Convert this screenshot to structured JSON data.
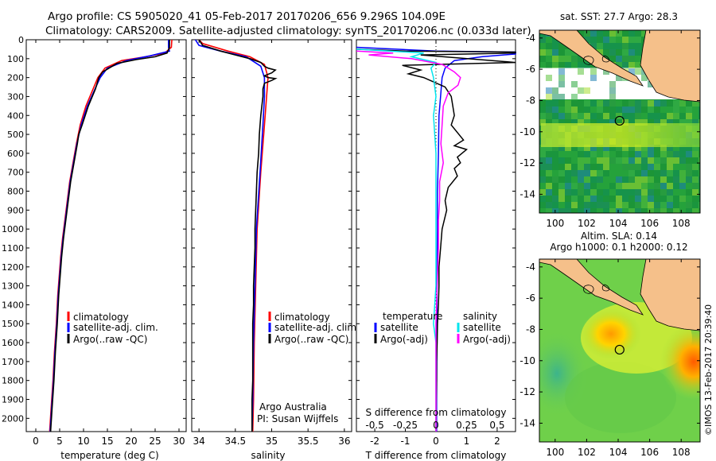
{
  "header": {
    "title_line1": "Argo profile: CS 5905020_41 05-Feb-2017 20170206_656 9.296S 104.09E",
    "title_line2": "Climatology: CARS2009. Satellite-adjusted climatology: synTS_20170206.nc (0.033d later)"
  },
  "colors": {
    "climatology": "#ff0000",
    "satellite": "#0000ff",
    "argo": "#000000",
    "sat_cyan": "#00e5ee",
    "argo_magenta": "#ff00ff",
    "land": "#f5c08a",
    "sst_bg": "#1f9c3a",
    "sla_bg": "#6fd04a"
  },
  "chart_data": [
    {
      "type": "line",
      "id": "temperature",
      "xlabel": "temperature (deg C)",
      "ylabel": "",
      "xlim": [
        -2,
        31.5
      ],
      "ylim": [
        2070,
        0
      ],
      "xticks": [
        0,
        5,
        10,
        15,
        20,
        25,
        30
      ],
      "yticks": [
        0,
        100,
        200,
        300,
        400,
        500,
        600,
        700,
        800,
        900,
        1000,
        1100,
        1200,
        1300,
        1400,
        1500,
        1600,
        1700,
        1800,
        1900,
        2000
      ],
      "legend": [
        "climatology",
        "satellite-adj. clim.",
        "Argo(..raw -QC)"
      ],
      "legend_position": "lower-center",
      "series": [
        {
          "name": "climatology",
          "color": "#ff0000",
          "points": [
            [
              28.5,
              0
            ],
            [
              28.4,
              40
            ],
            [
              27,
              70
            ],
            [
              23,
              90
            ],
            [
              18,
              110
            ],
            [
              14.5,
              150
            ],
            [
              13,
              200
            ],
            [
              12,
              260
            ],
            [
              10.5,
              350
            ],
            [
              9.3,
              450
            ],
            [
              8.5,
              550
            ],
            [
              7.8,
              650
            ],
            [
              7.1,
              750
            ],
            [
              6.6,
              850
            ],
            [
              6.1,
              950
            ],
            [
              5.6,
              1050
            ],
            [
              5.2,
              1150
            ],
            [
              4.9,
              1250
            ],
            [
              4.6,
              1350
            ],
            [
              4.3,
              1500
            ],
            [
              3.9,
              1650
            ],
            [
              3.6,
              1800
            ],
            [
              3.2,
              1950
            ],
            [
              2.9,
              2070
            ]
          ]
        },
        {
          "name": "satellite-adj. clim.",
          "color": "#0000ff",
          "points": [
            [
              27.8,
              0
            ],
            [
              27.8,
              40
            ],
            [
              28,
              60
            ],
            [
              24,
              85
            ],
            [
              19,
              110
            ],
            [
              15,
              150
            ],
            [
              13.5,
              200
            ],
            [
              12.4,
              260
            ],
            [
              10.8,
              350
            ],
            [
              9.5,
              450
            ],
            [
              8.6,
              550
            ],
            [
              7.9,
              650
            ],
            [
              7.2,
              750
            ],
            [
              6.7,
              850
            ],
            [
              6.2,
              950
            ],
            [
              5.7,
              1050
            ],
            [
              5.3,
              1150
            ],
            [
              5,
              1250
            ],
            [
              4.7,
              1350
            ],
            [
              4.4,
              1500
            ],
            [
              4,
              1650
            ],
            [
              3.7,
              1800
            ],
            [
              3.3,
              1950
            ],
            [
              3,
              2070
            ]
          ]
        },
        {
          "name": "Argo(..raw -QC)",
          "color": "#000000",
          "points": [
            [
              28,
              0
            ],
            [
              28,
              40
            ],
            [
              27.5,
              70
            ],
            [
              25,
              90
            ],
            [
              21,
              105
            ],
            [
              17,
              125
            ],
            [
              14,
              170
            ],
            [
              13.2,
              200
            ],
            [
              12.5,
              260
            ],
            [
              11,
              350
            ],
            [
              9.7,
              450
            ],
            [
              9,
              500
            ],
            [
              8.7,
              550
            ],
            [
              8,
              650
            ],
            [
              7.3,
              750
            ],
            [
              6.8,
              850
            ],
            [
              6.3,
              950
            ],
            [
              5.8,
              1050
            ],
            [
              5.4,
              1150
            ],
            [
              5.1,
              1250
            ],
            [
              4.8,
              1350
            ],
            [
              4.5,
              1500
            ],
            [
              4.1,
              1650
            ],
            [
              3.8,
              1800
            ],
            [
              3.4,
              1950
            ],
            [
              3.1,
              2070
            ]
          ]
        }
      ]
    },
    {
      "type": "line",
      "id": "salinity",
      "xlabel": "salinity",
      "ylabel": "",
      "xlim": [
        33.9,
        36.1
      ],
      "ylim": [
        2070,
        0
      ],
      "xticks": [
        34,
        34.5,
        35,
        35.5,
        36
      ],
      "legend": [
        "climatology",
        "satellite-adj. clim.",
        "Argo(..raw -QC)"
      ],
      "legend_position": "lower-right",
      "annotations": [
        "Argo Australia",
        "PI: Susan Wijffels"
      ],
      "series": [
        {
          "name": "climatology",
          "color": "#ff0000",
          "points": [
            [
              34.0,
              0
            ],
            [
              34.05,
              20
            ],
            [
              34.4,
              60
            ],
            [
              34.7,
              90
            ],
            [
              34.9,
              130
            ],
            [
              34.95,
              200
            ],
            [
              34.93,
              300
            ],
            [
              34.9,
              450
            ],
            [
              34.85,
              700
            ],
            [
              34.8,
              1000
            ],
            [
              34.78,
              1300
            ],
            [
              34.76,
              1600
            ],
            [
              34.75,
              1900
            ],
            [
              34.74,
              2070
            ]
          ]
        },
        {
          "name": "satellite-adj. clim.",
          "color": "#0000ff",
          "points": [
            [
              33.95,
              0
            ],
            [
              34.0,
              30
            ],
            [
              34.3,
              60
            ],
            [
              34.65,
              90
            ],
            [
              34.85,
              140
            ],
            [
              34.9,
              200
            ],
            [
              34.9,
              300
            ],
            [
              34.88,
              450
            ],
            [
              34.84,
              700
            ],
            [
              34.79,
              1000
            ],
            [
              34.77,
              1300
            ],
            [
              34.75,
              1600
            ],
            [
              34.74,
              1900
            ],
            [
              34.73,
              2070
            ]
          ]
        },
        {
          "name": "Argo(..raw -QC)",
          "color": "#000000",
          "points": [
            [
              34.0,
              0
            ],
            [
              34.05,
              30
            ],
            [
              34.3,
              60
            ],
            [
              34.5,
              80
            ],
            [
              34.7,
              100
            ],
            [
              34.85,
              120
            ],
            [
              34.9,
              140
            ],
            [
              34.95,
              150
            ],
            [
              35.05,
              160
            ],
            [
              35.0,
              175
            ],
            [
              34.9,
              190
            ],
            [
              34.95,
              200
            ],
            [
              35.05,
              205
            ],
            [
              35.0,
              215
            ],
            [
              34.9,
              230
            ],
            [
              34.88,
              260
            ],
            [
              34.88,
              300
            ],
            [
              34.85,
              400
            ],
            [
              34.83,
              500
            ],
            [
              34.82,
              600
            ],
            [
              34.8,
              700
            ],
            [
              34.79,
              800
            ],
            [
              34.78,
              900
            ],
            [
              34.77,
              1000
            ],
            [
              34.77,
              1100
            ],
            [
              34.76,
              1200
            ],
            [
              34.75,
              1300
            ],
            [
              34.75,
              1400
            ],
            [
              34.74,
              1500
            ],
            [
              34.74,
              1600
            ],
            [
              34.74,
              1700
            ],
            [
              34.74,
              1800
            ],
            [
              34.73,
              1900
            ],
            [
              34.73,
              2070
            ]
          ]
        }
      ]
    },
    {
      "type": "line",
      "id": "difference",
      "xlabel": "T difference from climatology",
      "xlabel_top": "S difference from climatology",
      "xlim": [
        -2.6,
        2.6
      ],
      "xlim_s": [
        -0.65,
        0.65
      ],
      "ylim": [
        2070,
        0
      ],
      "xticks": [
        -2,
        -1,
        0,
        1,
        2
      ],
      "xticks_s": [
        "-0.5",
        "-0.25",
        "0",
        "0.25",
        "0.5"
      ],
      "legend_temperature_title": "temperature",
      "legend_salinity_title": "salinity",
      "legend_t": [
        "satellite",
        "Argo(-adj)"
      ],
      "legend_s": [
        "satellite",
        "Argo(-adj)"
      ],
      "series": [
        {
          "name": "T satellite",
          "color": "#0000ff",
          "points": [
            [
              -2.6,
              40
            ],
            [
              0,
              60
            ],
            [
              2.6,
              65
            ],
            [
              2.6,
              75
            ],
            [
              1.5,
              90
            ],
            [
              0.6,
              110
            ],
            [
              0.3,
              150
            ],
            [
              0.2,
              200
            ],
            [
              0.15,
              300
            ],
            [
              0.1,
              400
            ],
            [
              0.08,
              600
            ],
            [
              0.05,
              800
            ],
            [
              0.05,
              1000
            ],
            [
              0.03,
              1300
            ],
            [
              0.03,
              1600
            ],
            [
              0.02,
              1900
            ],
            [
              0.02,
              2070
            ]
          ]
        },
        {
          "name": "T Argo(-adj)",
          "color": "#000000",
          "points": [
            [
              -2.6,
              50
            ],
            [
              -1,
              60
            ],
            [
              2.6,
              65
            ],
            [
              2.6,
              70
            ],
            [
              -0.5,
              80
            ],
            [
              2.6,
              120
            ],
            [
              -1.1,
              135
            ],
            [
              -0.5,
              160
            ],
            [
              -0.9,
              180
            ],
            [
              -0.4,
              200
            ],
            [
              0.3,
              250
            ],
            [
              0.5,
              300
            ],
            [
              0.6,
              400
            ],
            [
              0.5,
              450
            ],
            [
              0.9,
              530
            ],
            [
              0.6,
              560
            ],
            [
              1.0,
              580
            ],
            [
              0.7,
              620
            ],
            [
              0.8,
              650
            ],
            [
              0.6,
              680
            ],
            [
              0.7,
              720
            ],
            [
              0.4,
              780
            ],
            [
              0.3,
              850
            ],
            [
              0.35,
              900
            ],
            [
              0.2,
              1000
            ],
            [
              0.15,
              1100
            ],
            [
              0.1,
              1200
            ],
            [
              0.1,
              1300
            ],
            [
              0.08,
              1400
            ],
            [
              0.05,
              1500
            ],
            [
              0.04,
              1600
            ],
            [
              0.02,
              1700
            ],
            [
              0.02,
              1800
            ],
            [
              0.01,
              1900
            ],
            [
              0.0,
              2070
            ]
          ]
        },
        {
          "name": "S satellite",
          "color": "#00e5ee",
          "points": [
            [
              -0.65,
              50
            ],
            [
              -0.1,
              70
            ],
            [
              -0.2,
              90
            ],
            [
              0.0,
              120
            ],
            [
              -0.04,
              150
            ],
            [
              -0.02,
              200
            ],
            [
              0.0,
              300
            ],
            [
              -0.02,
              400
            ],
            [
              0.0,
              600
            ],
            [
              0.0,
              800
            ],
            [
              0.0,
              1000
            ],
            [
              0.0,
              1300
            ],
            [
              -0.02,
              1500
            ],
            [
              0.0,
              1600
            ],
            [
              0.0,
              1900
            ],
            [
              0.0,
              2070
            ]
          ]
        },
        {
          "name": "S Argo(-adj)",
          "color": "#ff00ff",
          "points": [
            [
              -0.65,
              60
            ],
            [
              -0.35,
              70
            ],
            [
              -0.55,
              80
            ],
            [
              -0.2,
              100
            ],
            [
              0.05,
              130
            ],
            [
              0.15,
              170
            ],
            [
              0.2,
              200
            ],
            [
              0.18,
              240
            ],
            [
              0.1,
              280
            ],
            [
              0.06,
              350
            ],
            [
              0.05,
              450
            ],
            [
              0.04,
              550
            ],
            [
              0.06,
              650
            ],
            [
              0.03,
              750
            ],
            [
              0.03,
              850
            ],
            [
              0.02,
              950
            ],
            [
              0.02,
              1100
            ],
            [
              0.01,
              1300
            ],
            [
              0.0,
              1500
            ],
            [
              0.0,
              1700
            ],
            [
              0.0,
              1900
            ],
            [
              0.0,
              2070
            ]
          ]
        }
      ]
    },
    {
      "type": "heatmap",
      "id": "sst_map",
      "title": "sat. SST: 27.7 Argo: 28.3",
      "xlim": [
        99,
        109.2
      ],
      "ylim": [
        -15.2,
        -3.5
      ],
      "xticks": [
        100,
        102,
        104,
        106,
        108
      ],
      "yticks": [
        -4,
        -6,
        -8,
        -10,
        -12,
        -14
      ],
      "marker": {
        "lon": 104.09,
        "lat": -9.296
      }
    },
    {
      "type": "heatmap",
      "id": "sla_map",
      "title_line1": "Altim. SLA: 0.14",
      "title_line2": "Argo h1000: 0.1 h2000: 0.12",
      "xlim": [
        99,
        109.2
      ],
      "ylim": [
        -15.2,
        -3.5
      ],
      "xticks": [
        100,
        102,
        104,
        106,
        108
      ],
      "yticks": [
        -4,
        -6,
        -8,
        -10,
        -12,
        -14
      ],
      "marker": {
        "lon": 104.09,
        "lat": -9.296
      }
    }
  ],
  "credit": "©IMOS 13-Feb-2017 20:39:40"
}
